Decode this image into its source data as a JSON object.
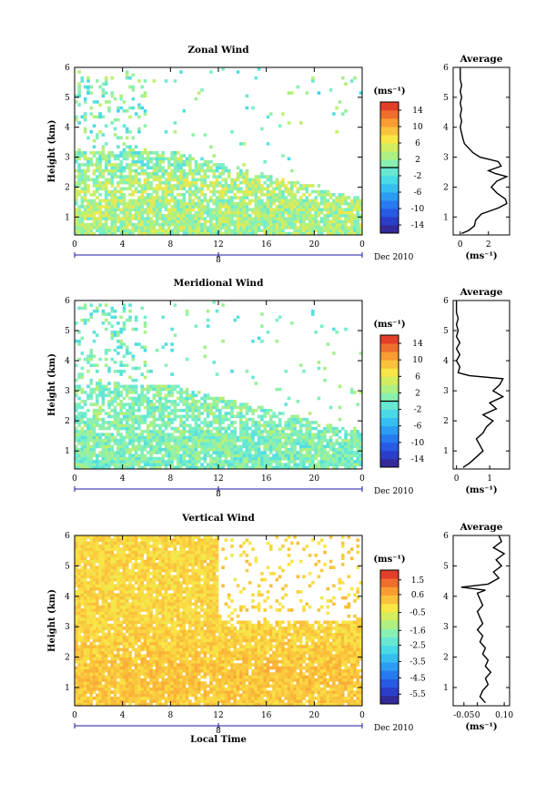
{
  "chart_data": [
    {
      "type": "heatmap",
      "title": "Zonal Wind",
      "ylabel": "Height (km)",
      "xlim": [
        0,
        24
      ],
      "ylim": [
        0.4,
        6
      ],
      "xticks": [
        "0",
        "4",
        "8",
        "12",
        "16",
        "20",
        "0"
      ],
      "yticks": [
        "1",
        "2",
        "3",
        "4",
        "5",
        "6"
      ],
      "date_marker": "8",
      "date_label": "Dec 2010",
      "colorbar": {
        "unit": "(ms⁻¹)",
        "range": [
          -16,
          16
        ],
        "ticks": [
          "14",
          "10",
          "6",
          "2",
          "-2",
          "-6",
          "-10",
          "-14"
        ],
        "zero_line": 0
      },
      "field": {
        "mean_profile": [
          [
            0.4,
            2.5
          ],
          [
            1.0,
            3.0
          ],
          [
            1.6,
            2.8
          ],
          [
            2.2,
            3.2
          ],
          [
            2.6,
            1.5
          ],
          [
            3.0,
            1.2
          ],
          [
            3.5,
            0.6
          ],
          [
            4.5,
            0.3
          ],
          [
            5.5,
            0.2
          ],
          [
            6.0,
            0.2
          ]
        ],
        "vmin": -16,
        "vmax": 16,
        "base": 2,
        "jitter": 4
      },
      "profile": {
        "title": "Average",
        "xlabel": "(ms⁻¹)",
        "xlim": [
          -0.5,
          3.5
        ],
        "xticks": [
          "0",
          "2"
        ],
        "height": [
          0.45,
          0.55,
          0.7,
          0.9,
          1.1,
          1.3,
          1.45,
          1.6,
          1.8,
          2.0,
          2.2,
          2.35,
          2.45,
          2.55,
          2.7,
          2.85,
          3.0,
          3.15,
          3.3,
          3.45,
          3.6,
          3.8,
          4.0,
          4.2,
          4.4,
          4.6,
          4.8,
          5.0,
          5.2,
          5.4,
          5.6,
          5.8,
          6.0
        ],
        "value": [
          0.1,
          0.6,
          1.0,
          1.1,
          1.5,
          2.7,
          3.3,
          3.2,
          2.6,
          2.2,
          2.6,
          3.3,
          2.5,
          2.0,
          2.9,
          2.7,
          1.4,
          0.9,
          0.6,
          0.3,
          0.2,
          0.1,
          0.0,
          0.1,
          0.0,
          0.1,
          0.0,
          0.1,
          0.0,
          0.1,
          0.0,
          0.0,
          0.0
        ]
      }
    },
    {
      "type": "heatmap",
      "title": "Meridional Wind",
      "ylabel": "Height (km)",
      "xlim": [
        0,
        24
      ],
      "ylim": [
        0.4,
        6
      ],
      "xticks": [
        "0",
        "4",
        "8",
        "12",
        "16",
        "20",
        "0"
      ],
      "yticks": [
        "1",
        "2",
        "3",
        "4",
        "5",
        "6"
      ],
      "date_marker": "8",
      "date_label": "Dec 2010",
      "colorbar": {
        "unit": "(ms⁻¹)",
        "range": [
          -16,
          16
        ],
        "ticks": [
          "14",
          "10",
          "6",
          "2",
          "-2",
          "-6",
          "-10",
          "-14"
        ],
        "zero_line": 0
      },
      "field": {
        "mean_profile": [
          [
            0.4,
            0.3
          ],
          [
            1.0,
            0.6
          ],
          [
            1.6,
            0.8
          ],
          [
            2.2,
            1.0
          ],
          [
            2.6,
            0.8
          ],
          [
            3.0,
            0.9
          ],
          [
            3.5,
            0.4
          ],
          [
            4.5,
            0.1
          ],
          [
            5.5,
            0.0
          ],
          [
            6.0,
            0.0
          ]
        ],
        "vmin": -16,
        "vmax": 16,
        "base": 0,
        "jitter": 3
      },
      "profile": {
        "title": "Average",
        "xlabel": "(ms⁻¹)",
        "xlim": [
          -0.1,
          1.6
        ],
        "xticks": [
          "0",
          "1"
        ],
        "height": [
          0.45,
          0.6,
          0.8,
          1.0,
          1.2,
          1.4,
          1.6,
          1.8,
          2.0,
          2.2,
          2.4,
          2.6,
          2.8,
          3.0,
          3.2,
          3.4,
          3.5,
          3.6,
          3.8,
          4.0,
          4.2,
          4.4,
          4.6,
          4.8,
          5.0,
          5.2,
          5.4,
          5.6,
          5.8,
          6.0
        ],
        "value": [
          0.2,
          0.4,
          0.6,
          0.8,
          0.7,
          0.6,
          0.8,
          0.9,
          1.1,
          0.8,
          1.2,
          1.0,
          1.4,
          1.1,
          1.3,
          1.4,
          0.4,
          0.05,
          0.1,
          0.0,
          0.1,
          0.0,
          0.1,
          0.0,
          0.05,
          0.0,
          0.05,
          0.0,
          0.0,
          0.0
        ]
      }
    },
    {
      "type": "heatmap",
      "title": "Vertical Wind",
      "ylabel": "Height (km)",
      "xlabel": "Local Time",
      "xlim": [
        0,
        24
      ],
      "ylim": [
        0.4,
        6
      ],
      "xticks": [
        "0",
        "4",
        "8",
        "12",
        "16",
        "20",
        "0"
      ],
      "yticks": [
        "1",
        "2",
        "3",
        "4",
        "5",
        "6"
      ],
      "date_marker": "8",
      "date_label": "Dec 2010",
      "colorbar": {
        "unit": "(ms⁻¹)",
        "range": [
          -6.1,
          2.1
        ],
        "ticks": [
          "1.5",
          "0.6",
          "-0.5",
          "-1.6",
          "-2.5",
          "-3.5",
          "-4.5",
          "-5.5"
        ],
        "zero_line": null
      },
      "field": {
        "mean_profile": [
          [
            0.4,
            0.2
          ],
          [
            1.5,
            0.3
          ],
          [
            2.5,
            0.1
          ],
          [
            3.5,
            0.0
          ],
          [
            4.5,
            0.0
          ],
          [
            6.0,
            0.0
          ]
        ],
        "vmin": -6.1,
        "vmax": 2.1,
        "base": 0,
        "jitter": 0.4
      },
      "profile": {
        "title": "Average",
        "xlabel": "(ms⁻¹)",
        "xlim": [
          -0.09,
          0.12
        ],
        "xticks": [
          "-0.05",
          "0",
          "0.10"
        ],
        "height": [
          0.5,
          0.7,
          0.9,
          1.1,
          1.3,
          1.5,
          1.7,
          1.9,
          2.1,
          2.3,
          2.5,
          2.7,
          2.9,
          3.1,
          3.3,
          3.5,
          3.7,
          3.9,
          4.1,
          4.2,
          4.3,
          4.4,
          4.6,
          4.8,
          5.0,
          5.2,
          5.4,
          5.6,
          5.8,
          6.0
        ],
        "value": [
          0.03,
          0.01,
          0.02,
          0.04,
          0.03,
          0.05,
          0.03,
          0.04,
          0.02,
          0.03,
          0.01,
          0.02,
          0.0,
          0.02,
          0.01,
          0.0,
          0.02,
          0.01,
          0.0,
          0.03,
          -0.06,
          0.04,
          0.08,
          0.06,
          0.09,
          0.07,
          0.1,
          0.06,
          0.09,
          0.08
        ]
      }
    }
  ]
}
